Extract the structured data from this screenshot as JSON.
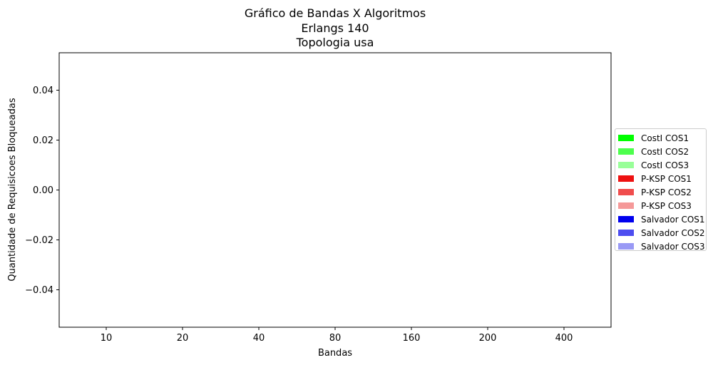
{
  "chart_data": {
    "type": "bar",
    "title": [
      "Gráfico de Bandas X Algoritmos",
      "Erlangs 140",
      "Topologia usa"
    ],
    "xlabel": "Bandas",
    "ylabel": "Quantidade de Requisicoes Bloqueadas",
    "categories": [
      "10",
      "20",
      "40",
      "80",
      "160",
      "200",
      "400"
    ],
    "ylim": [
      -0.055,
      0.055
    ],
    "yticks": [
      0.04,
      0.02,
      0.0,
      -0.02,
      -0.04
    ],
    "ytick_labels": [
      "0.04",
      "0.02",
      "0.00",
      "−0.02",
      "−0.04"
    ],
    "grid": false,
    "legend_position": "right-center",
    "series": [
      {
        "name": "CostI COS1",
        "color": "#00ff00",
        "values": [
          0,
          0,
          0,
          0,
          0,
          0,
          0
        ]
      },
      {
        "name": "CostI COS2",
        "color": "#4dff4d",
        "values": [
          0,
          0,
          0,
          0,
          0,
          0,
          0
        ]
      },
      {
        "name": "CostI COS3",
        "color": "#99ff99",
        "values": [
          0,
          0,
          0,
          0,
          0,
          0,
          0
        ]
      },
      {
        "name": "P-KSP COS1",
        "color": "#ee1111",
        "values": [
          0,
          0,
          0,
          0,
          0,
          0,
          0
        ]
      },
      {
        "name": "P-KSP COS2",
        "color": "#f04d4d",
        "values": [
          0,
          0,
          0,
          0,
          0,
          0,
          0
        ]
      },
      {
        "name": "P-KSP COS3",
        "color": "#f59999",
        "values": [
          0,
          0,
          0,
          0,
          0,
          0,
          0
        ]
      },
      {
        "name": "Salvador COS1",
        "color": "#0000ee",
        "values": [
          0,
          0,
          0,
          0,
          0,
          0,
          0
        ]
      },
      {
        "name": "Salvador COS2",
        "color": "#4d4df0",
        "values": [
          0,
          0,
          0,
          0,
          0,
          0,
          0
        ]
      },
      {
        "name": "Salvador COS3",
        "color": "#9999f5",
        "values": [
          0,
          0,
          0,
          0,
          0,
          0,
          0
        ]
      }
    ]
  }
}
